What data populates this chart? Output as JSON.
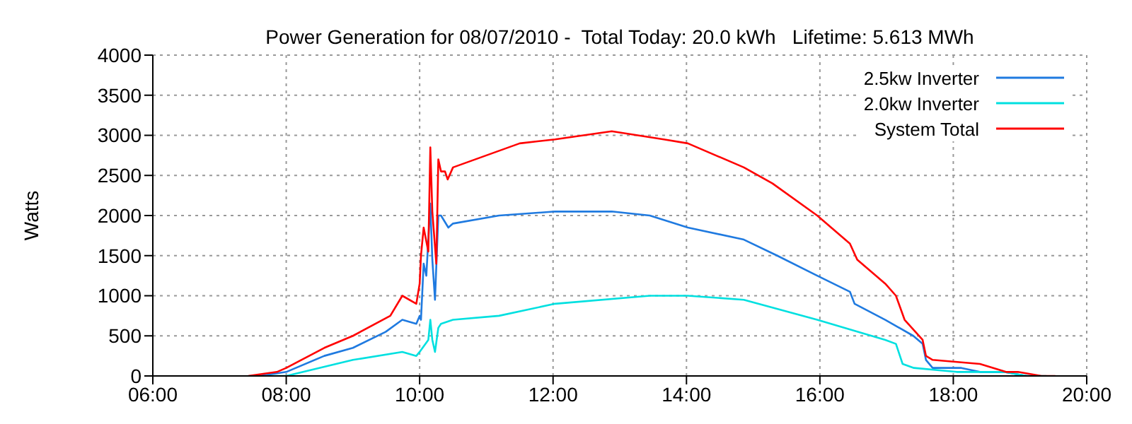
{
  "chart_data": {
    "type": "line",
    "title": "Power Generation for 08/07/2010 -  Total Today: 20.0 kWh   Lifetime: 5.613 MWh",
    "ylabel": "Watts",
    "xlim": [
      6,
      20
    ],
    "xticks": [
      {
        "value": 6,
        "label": "06:00"
      },
      {
        "value": 8,
        "label": "08:00"
      },
      {
        "value": 10,
        "label": "10:00"
      },
      {
        "value": 12,
        "label": "12:00"
      },
      {
        "value": 14,
        "label": "14:00"
      },
      {
        "value": 16,
        "label": "16:00"
      },
      {
        "value": 18,
        "label": "18:00"
      },
      {
        "value": 20,
        "label": "20:00"
      }
    ],
    "ylim": [
      0,
      4000
    ],
    "yticks": [
      0,
      500,
      1000,
      1500,
      2000,
      2500,
      3000,
      3500,
      4000
    ],
    "grid": true,
    "legend": "top right",
    "marker": "none",
    "line_style": "solid",
    "series": [
      {
        "name": "2.5kw Inverter",
        "color": "#1f7ae0",
        "x": [
          7.6,
          8.0,
          8.57,
          9.0,
          9.49,
          9.74,
          9.95,
          10.0,
          10.02,
          10.06,
          10.1,
          10.16,
          10.19,
          10.23,
          10.28,
          10.32,
          10.43,
          10.5,
          11.19,
          12.03,
          12.88,
          13.45,
          14.02,
          14.86,
          15.36,
          15.96,
          16.45,
          16.52,
          16.98,
          17.4,
          17.54,
          17.59,
          17.69,
          18.12,
          18.4,
          18.76,
          19.1,
          19.3
        ],
        "values": [
          0,
          50,
          250,
          350,
          550,
          700,
          650,
          750,
          700,
          1400,
          1250,
          2150,
          1450,
          950,
          2000,
          2000,
          1850,
          1900,
          2000,
          2050,
          2050,
          2000,
          1850,
          1700,
          1500,
          1250,
          1050,
          900,
          700,
          500,
          400,
          200,
          100,
          100,
          50,
          50,
          0,
          0
        ]
      },
      {
        "name": "2.0kw Inverter",
        "color": "#00e0e0",
        "x": [
          7.7,
          8.0,
          9.0,
          9.74,
          9.95,
          10.0,
          10.13,
          10.16,
          10.19,
          10.23,
          10.28,
          10.32,
          10.5,
          11.19,
          12.03,
          13.45,
          14.02,
          14.86,
          15.96,
          16.98,
          17.14,
          17.24,
          17.41,
          18.05,
          18.76,
          19.1,
          19.4
        ],
        "values": [
          0,
          0,
          200,
          300,
          250,
          300,
          450,
          700,
          450,
          300,
          600,
          650,
          700,
          750,
          900,
          1000,
          1000,
          950,
          700,
          450,
          400,
          150,
          100,
          50,
          50,
          0,
          0
        ]
      },
      {
        "name": "System Total",
        "color": "#ff0000",
        "x": [
          7.43,
          7.86,
          8.0,
          8.57,
          9.0,
          9.56,
          9.74,
          9.95,
          10.0,
          10.02,
          10.06,
          10.13,
          10.16,
          10.19,
          10.25,
          10.28,
          10.32,
          10.38,
          10.42,
          10.5,
          11.0,
          11.5,
          12.03,
          12.88,
          13.66,
          14.02,
          14.86,
          15.29,
          15.96,
          16.45,
          16.56,
          16.98,
          17.14,
          17.27,
          17.54,
          17.59,
          17.69,
          18.4,
          18.79,
          18.97,
          19.32,
          19.53
        ],
        "values": [
          0,
          50,
          100,
          350,
          500,
          750,
          1000,
          900,
          1150,
          1500,
          1850,
          1550,
          2850,
          2050,
          1400,
          2700,
          2550,
          2550,
          2450,
          2600,
          2750,
          2900,
          2950,
          3050,
          2950,
          2900,
          2600,
          2400,
          2000,
          1650,
          1450,
          1150,
          1000,
          700,
          450,
          250,
          200,
          150,
          50,
          50,
          0,
          0
        ]
      }
    ]
  }
}
